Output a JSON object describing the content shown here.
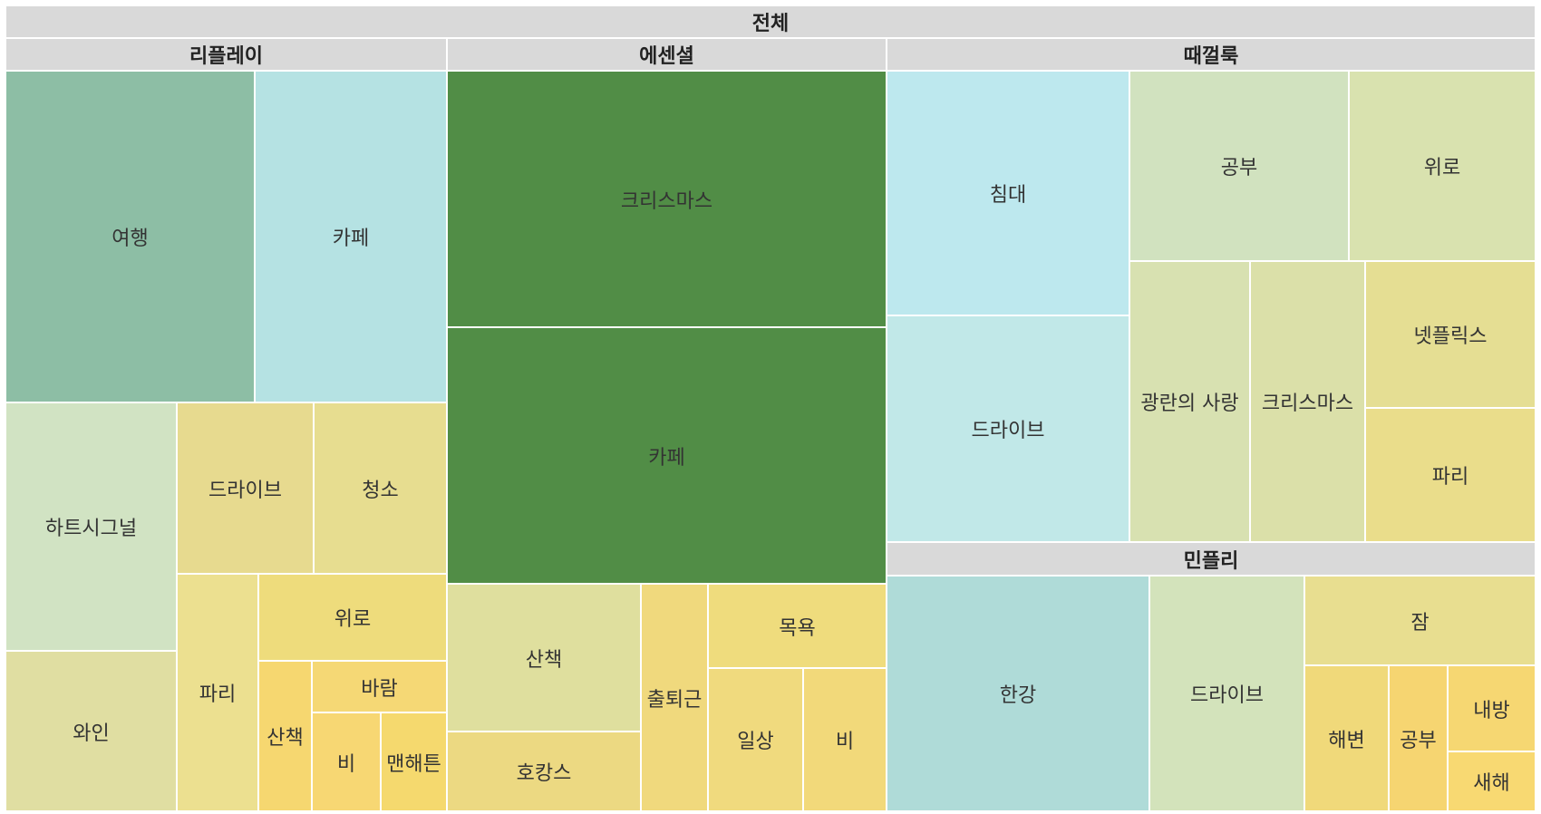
{
  "chart_data": {
    "type": "treemap",
    "title": "전체",
    "groups": [
      {
        "name": "리플레이",
        "items": [
          {
            "label": "여행",
            "color": "#8dbea5"
          },
          {
            "label": "카페",
            "color": "#b5e2e3"
          },
          {
            "label": "하트시그널",
            "color": "#d1e3c3"
          },
          {
            "label": "드라이브",
            "color": "#e7da8f"
          },
          {
            "label": "청소",
            "color": "#e7dd90"
          },
          {
            "label": "와인",
            "color": "#e0dea2"
          },
          {
            "label": "파리",
            "color": "#ece090"
          },
          {
            "label": "위로",
            "color": "#eedc7c"
          },
          {
            "label": "산책",
            "color": "#f6d770"
          },
          {
            "label": "바람",
            "color": "#f5d875"
          },
          {
            "label": "비",
            "color": "#f7d773"
          },
          {
            "label": "맨해튼",
            "color": "#f5d96e"
          }
        ]
      },
      {
        "name": "에센셜",
        "items": [
          {
            "label": "크리스마스",
            "color": "#518d46"
          },
          {
            "label": "카페",
            "color": "#518d46"
          },
          {
            "label": "산책",
            "color": "#dfdf9e"
          },
          {
            "label": "호캉스",
            "color": "#ecd982"
          },
          {
            "label": "출퇴근",
            "color": "#f0d97d"
          },
          {
            "label": "목욕",
            "color": "#efdc7d"
          },
          {
            "label": "일상",
            "color": "#f0da7e"
          },
          {
            "label": "비",
            "color": "#f2d97a"
          }
        ]
      },
      {
        "name": "때껄룩",
        "items": [
          {
            "label": "침대",
            "color": "#bde8ee"
          },
          {
            "label": "공부",
            "color": "#d1e2bf"
          },
          {
            "label": "위로",
            "color": "#d9e2af"
          },
          {
            "label": "드라이브",
            "color": "#c1e8e8"
          },
          {
            "label": "광란의 사랑",
            "color": "#d8e1b1"
          },
          {
            "label": "크리스마스",
            "color": "#dbe0a9"
          },
          {
            "label": "넷플릭스",
            "color": "#e5de93"
          },
          {
            "label": "파리",
            "color": "#eadd8b"
          }
        ]
      },
      {
        "name": "민플리",
        "items": [
          {
            "label": "한강",
            "color": "#afdbd8"
          },
          {
            "label": "드라이브",
            "color": "#d3e3bb"
          },
          {
            "label": "잠",
            "color": "#e8de90"
          },
          {
            "label": "해변",
            "color": "#f0d97a"
          },
          {
            "label": "공부",
            "color": "#f6d571"
          },
          {
            "label": "내방",
            "color": "#f6d772"
          },
          {
            "label": "새해",
            "color": "#f8d972"
          }
        ]
      }
    ]
  }
}
